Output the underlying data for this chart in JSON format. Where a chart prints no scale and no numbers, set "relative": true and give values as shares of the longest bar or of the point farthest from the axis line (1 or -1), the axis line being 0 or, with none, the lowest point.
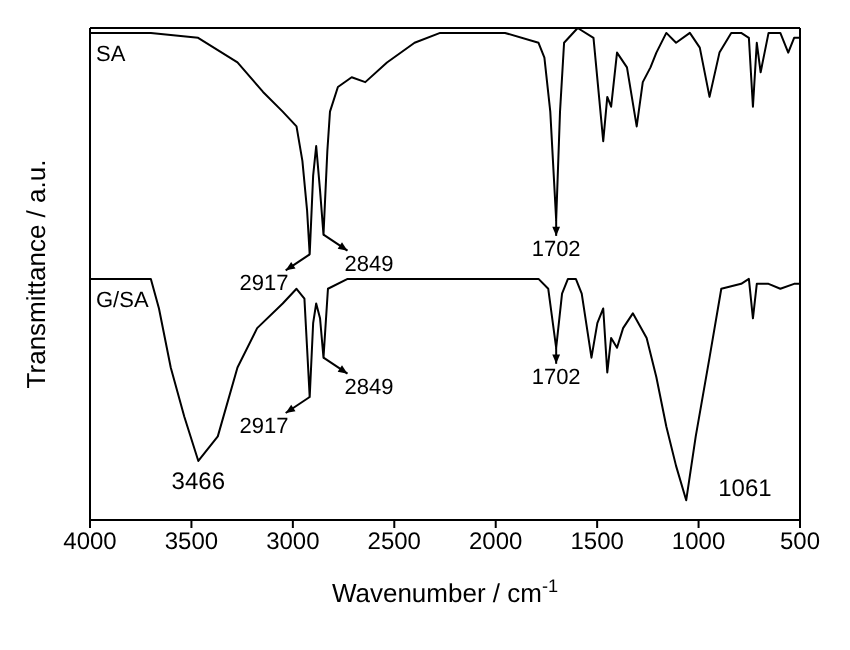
{
  "chart_data": {
    "type": "line",
    "relative": true,
    "xlabel": "Wavenumber / cm$^{-1}$",
    "ylabel": "Transmittance / a.u.",
    "xlim": [
      4000,
      500
    ],
    "xticks": [
      4000,
      3500,
      3000,
      2500,
      2000,
      1500,
      1000,
      500
    ],
    "marker": "none",
    "line_style": "solid",
    "series": [
      {
        "name": "SA",
        "color": "#000000",
        "x": [
          4000,
          3700,
          3467,
          3273,
          3147,
          3050,
          2982,
          2953,
          2930,
          2917,
          2900,
          2885,
          2866,
          2849,
          2830,
          2817,
          2778,
          2710,
          2643,
          2536,
          2400,
          2274,
          1954,
          1789,
          1760,
          1731,
          1702,
          1683,
          1663,
          1596,
          1518,
          1470,
          1450,
          1431,
          1402,
          1353,
          1305,
          1275,
          1237,
          1208,
          1159,
          1111,
          1043,
          994,
          946,
          897,
          839,
          790,
          752,
          732,
          713,
          694,
          655,
          597,
          558,
          529,
          500
        ],
        "values": [
          0.99,
          0.99,
          0.98,
          0.93,
          0.87,
          0.83,
          0.8,
          0.73,
          0.63,
          0.54,
          0.7,
          0.76,
          0.67,
          0.58,
          0.75,
          0.83,
          0.88,
          0.9,
          0.89,
          0.93,
          0.97,
          0.99,
          0.99,
          0.97,
          0.94,
          0.83,
          0.61,
          0.83,
          0.97,
          1.0,
          0.98,
          0.77,
          0.86,
          0.84,
          0.95,
          0.92,
          0.8,
          0.89,
          0.92,
          0.95,
          0.99,
          0.97,
          0.99,
          0.96,
          0.86,
          0.95,
          0.99,
          0.99,
          0.98,
          0.84,
          0.97,
          0.91,
          0.99,
          0.99,
          0.95,
          0.98,
          0.98
        ]
      },
      {
        "name": "G/SA",
        "color": "#000000",
        "x": [
          4000,
          3700,
          3660,
          3602,
          3535,
          3466,
          3370,
          3273,
          3176,
          3050,
          2982,
          2943,
          2930,
          2917,
          2900,
          2885,
          2866,
          2849,
          2827,
          2730,
          1789,
          1741,
          1702,
          1673,
          1644,
          1605,
          1576,
          1528,
          1499,
          1470,
          1450,
          1431,
          1402,
          1372,
          1324,
          1256,
          1208,
          1159,
          1111,
          1061,
          1014,
          946,
          888,
          790,
          752,
          732,
          713,
          655,
          597,
          529,
          500
        ],
        "values": [
          0.49,
          0.49,
          0.43,
          0.31,
          0.21,
          0.12,
          0.17,
          0.31,
          0.39,
          0.44,
          0.47,
          0.45,
          0.35,
          0.25,
          0.4,
          0.44,
          0.41,
          0.33,
          0.47,
          0.49,
          0.49,
          0.47,
          0.35,
          0.46,
          0.49,
          0.49,
          0.46,
          0.33,
          0.4,
          0.43,
          0.3,
          0.37,
          0.35,
          0.39,
          0.42,
          0.37,
          0.29,
          0.19,
          0.11,
          0.04,
          0.17,
          0.33,
          0.47,
          0.48,
          0.49,
          0.41,
          0.48,
          0.48,
          0.47,
          0.48,
          0.48
        ]
      }
    ],
    "annotations": [
      {
        "text": "2917",
        "x": 2917,
        "y": 0.54
      },
      {
        "text": "2849",
        "x": 2849,
        "y": 0.58
      },
      {
        "text": "1702",
        "x": 1702,
        "y": 0.61
      },
      {
        "text": "3466",
        "x": 3466,
        "y": 0.12
      },
      {
        "text": "2917",
        "x": 2917,
        "y": 0.25
      },
      {
        "text": "2849",
        "x": 2849,
        "y": 0.33
      },
      {
        "text": "1702",
        "x": 1702,
        "y": 0.35
      },
      {
        "text": "1061",
        "x": 1061,
        "y": 0.04
      }
    ]
  }
}
